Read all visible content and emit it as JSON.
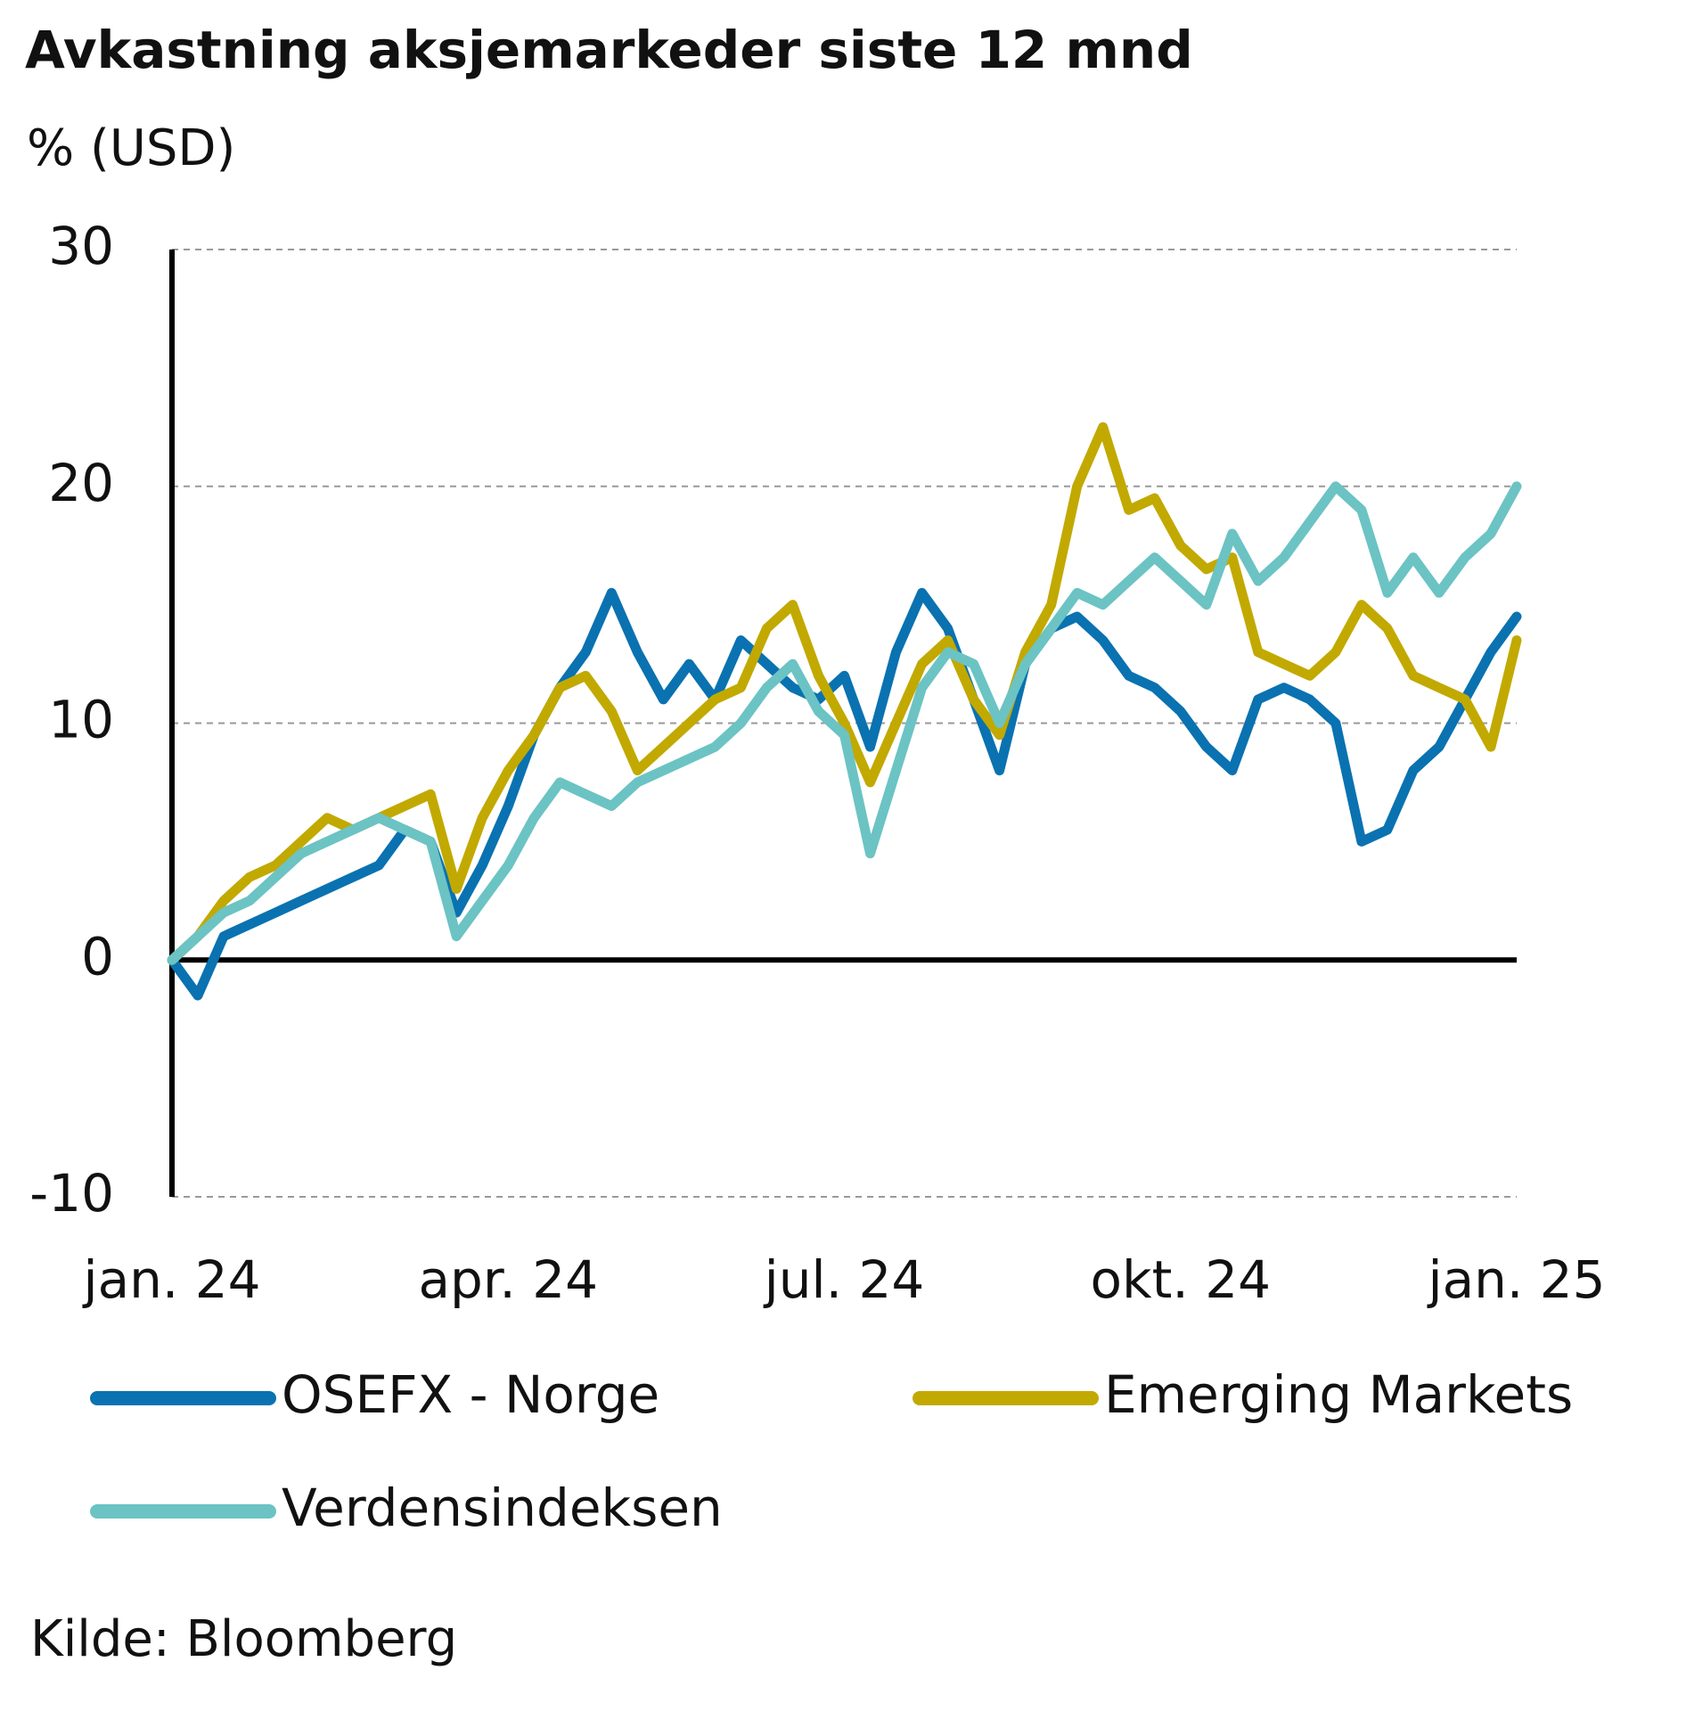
{
  "chart_data": {
    "type": "line",
    "title": "Avkastning aksjemarkeder siste 12 mnd",
    "y_label": "% (USD)",
    "source": "Kilde: Bloomberg",
    "categories": [
      "jan. 24",
      null,
      null,
      null,
      null,
      null,
      null,
      null,
      null,
      null,
      null,
      null,
      null,
      "apr. 24",
      null,
      null,
      null,
      null,
      null,
      null,
      null,
      null,
      null,
      null,
      null,
      null,
      "jul. 24",
      null,
      null,
      null,
      null,
      null,
      null,
      null,
      null,
      null,
      null,
      null,
      null,
      "okt. 24",
      null,
      null,
      null,
      null,
      null,
      null,
      null,
      null,
      null,
      null,
      null,
      null,
      "jan. 25"
    ],
    "series": [
      {
        "name": "OSEFX - Norge",
        "color": "#0a72b0",
        "values": [
          0,
          -1.5,
          1,
          1.5,
          2,
          2.5,
          3,
          3.5,
          4,
          5.5,
          5,
          2,
          4,
          6.5,
          9.5,
          11.5,
          13,
          15.5,
          13,
          11,
          12.5,
          11,
          13.5,
          12.5,
          11.5,
          11,
          12,
          9,
          13,
          15.5,
          14,
          11,
          8,
          12.5,
          14,
          14.5,
          13.5,
          12,
          11.5,
          10.5,
          9,
          8,
          11,
          11.5,
          11,
          10,
          5,
          5.5,
          8,
          9,
          11,
          13,
          14.5
        ]
      },
      {
        "name": "Emerging Markets",
        "color": "#c2a900",
        "values": [
          0,
          1,
          2.5,
          3.5,
          4,
          5,
          6,
          5.5,
          6,
          6.5,
          7,
          3,
          6,
          8,
          9.5,
          11.5,
          12,
          10.5,
          8,
          9,
          10,
          11,
          11.5,
          14,
          15,
          12,
          10,
          7.5,
          10,
          12.5,
          13.5,
          11,
          9.5,
          13,
          15,
          20,
          22.5,
          19,
          19.5,
          17.5,
          16.5,
          17,
          13,
          12.5,
          12,
          13,
          15,
          14,
          12,
          11.5,
          11,
          9,
          13.5
        ]
      },
      {
        "name": "Verdensindeksen",
        "color": "#6cc3c3",
        "values": [
          0,
          1,
          2,
          2.5,
          3.5,
          4.5,
          5,
          5.5,
          6,
          5.5,
          5,
          1,
          2.5,
          4,
          6,
          7.5,
          7,
          6.5,
          7.5,
          8,
          8.5,
          9,
          10,
          11.5,
          12.5,
          10.5,
          9.5,
          4.5,
          8,
          11.5,
          13,
          12.5,
          10,
          12.5,
          14,
          15.5,
          15,
          16,
          17,
          16,
          15,
          18,
          16,
          17,
          18.5,
          20,
          19,
          15.5,
          17,
          15.5,
          17,
          18,
          20
        ]
      }
    ],
    "ylim": [
      -10,
      30
    ],
    "yticks": [
      -10,
      0,
      10,
      20,
      30
    ],
    "grid": true,
    "legend": "bottom"
  }
}
